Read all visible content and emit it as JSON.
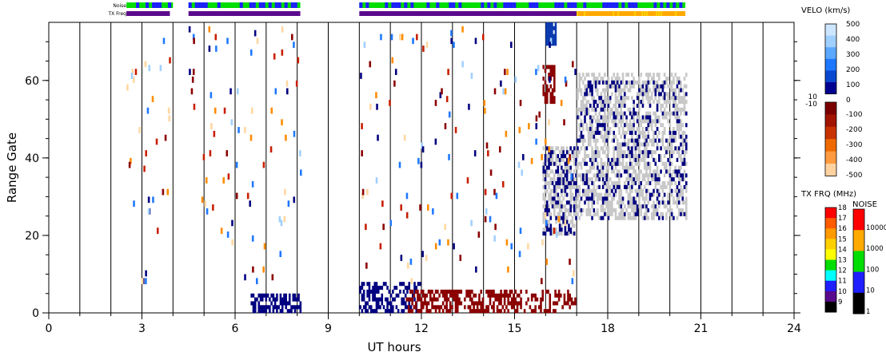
{
  "chart_data": {
    "type": "heatmap",
    "title": "",
    "xlabel": "UT hours",
    "ylabel": "Range Gate",
    "xlim": [
      0,
      24
    ],
    "ylim": [
      0,
      75
    ],
    "xticks": [
      "0",
      "3",
      "6",
      "9",
      "12",
      "15",
      "18",
      "21",
      "24"
    ],
    "yticks": [
      "0",
      "20",
      "40",
      "60"
    ],
    "status_bars": {
      "noise_label": "Noise",
      "txfreq_label": "TX Freq",
      "noise_segments": [
        [
          2.5,
          4.0
        ],
        [
          4.5,
          8.1
        ],
        [
          10.0,
          20.5
        ]
      ],
      "txfreq_segments": [
        {
          "start": 2.5,
          "end": 3.9,
          "color": "#5a0a8c"
        },
        {
          "start": 4.5,
          "end": 8.1,
          "color": "#5a0a8c"
        },
        {
          "start": 10.0,
          "end": 17.0,
          "color": "#5a0a8c"
        },
        {
          "start": 17.0,
          "end": 20.5,
          "color": "#ffaa00"
        }
      ]
    },
    "clusters": [
      {
        "x": [
          6.5,
          8.1
        ],
        "gates": [
          0,
          5
        ],
        "color": "#000080",
        "density": 0.55
      },
      {
        "x": [
          10.0,
          12.0
        ],
        "gates": [
          0,
          8
        ],
        "color": "#000080",
        "density": 0.45
      },
      {
        "x": [
          11.5,
          15.0
        ],
        "gates": [
          0,
          6
        ],
        "color": "#8b0000",
        "density": 0.6
      },
      {
        "x": [
          15.0,
          17.0
        ],
        "gates": [
          0,
          6
        ],
        "color": "#8b0000",
        "density": 0.35
      },
      {
        "x": [
          16.0,
          16.3
        ],
        "gates": [
          69,
          75
        ],
        "color": "#0a3ab0",
        "density": 0.95
      },
      {
        "x": [
          15.9,
          16.3
        ],
        "gates": [
          54,
          64
        ],
        "color": "#8b0000",
        "density": 0.6
      },
      {
        "x": [
          15.9,
          17.0
        ],
        "gates": [
          20,
          43
        ],
        "color": "#c8c8c8",
        "density": 0.55
      },
      {
        "x": [
          15.9,
          17.0
        ],
        "gates": [
          20,
          43
        ],
        "color": "#000080",
        "density": 0.25
      },
      {
        "x": [
          17.0,
          20.5
        ],
        "gates": [
          24,
          62
        ],
        "color": "#c8c8c8",
        "density": 0.5
      },
      {
        "x": [
          17.0,
          20.5
        ],
        "gates": [
          24,
          60
        ],
        "color": "#000080",
        "density": 0.15
      }
    ],
    "scatter_color_pool": [
      "#000080",
      "#8b0000",
      "#1e78ff",
      "#ff8c00",
      "#ffd7a0",
      "#a0d0ff",
      "#c81e00"
    ],
    "legends": {
      "velocity": {
        "title": "VELO (km/s)",
        "pos_ticks": [
          "500",
          "400",
          "300",
          "200",
          "100",
          "0"
        ],
        "zero_labels": [
          "10",
          "-10"
        ],
        "neg_ticks": [
          "-100",
          "-200",
          "-300",
          "-400",
          "-500"
        ],
        "pos_colors": [
          "#cde6ff",
          "#9fd0ff",
          "#5aa8ff",
          "#1e78ff",
          "#0a48d0",
          "#000090"
        ],
        "neg_colors": [
          "#7a0000",
          "#a01400",
          "#c83200",
          "#ee6a00",
          "#ff9a40",
          "#ffd2a0"
        ]
      },
      "tx_freq": {
        "title": "TX FRQ (MHz)",
        "ticks": [
          "18",
          "17",
          "16",
          "15",
          "14",
          "13",
          "12",
          "11",
          "10",
          "9"
        ],
        "colors": [
          "#ff0000",
          "#ff5a00",
          "#ff9a00",
          "#ffd000",
          "#ffff00",
          "#00dd00",
          "#00ffff",
          "#1e1eff",
          "#5a0a8c",
          "#000000"
        ]
      },
      "noise": {
        "title": "NOISE",
        "ticks": [
          "10000",
          "1000",
          "100",
          "10",
          "1"
        ],
        "colors": [
          "#ff0000",
          "#ffaa00",
          "#00dd00",
          "#1e1eff",
          "#000000"
        ]
      }
    }
  }
}
